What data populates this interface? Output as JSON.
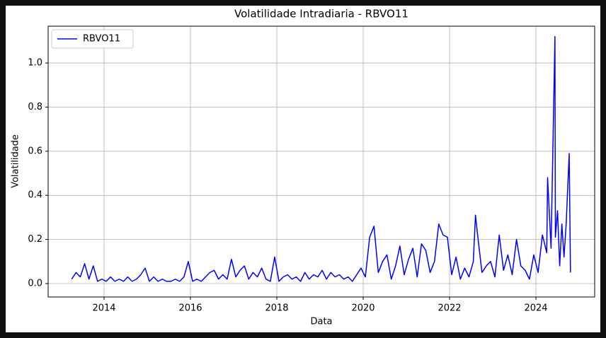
{
  "chart_data": {
    "type": "line",
    "title": "Volatilidade Intradiaria - RBVO11",
    "x_label": "Data",
    "y_label": "Volatilidade",
    "x": [
      2013.25,
      2013.35,
      2013.45,
      2013.55,
      2013.65,
      2013.75,
      2013.85,
      2013.95,
      2014.05,
      2014.15,
      2014.25,
      2014.35,
      2014.45,
      2014.55,
      2014.65,
      2014.75,
      2014.85,
      2014.95,
      2015.05,
      2015.15,
      2015.25,
      2015.35,
      2015.45,
      2015.55,
      2015.65,
      2015.75,
      2015.85,
      2015.95,
      2016.05,
      2016.15,
      2016.25,
      2016.35,
      2016.45,
      2016.55,
      2016.65,
      2016.75,
      2016.85,
      2016.95,
      2017.05,
      2017.15,
      2017.25,
      2017.35,
      2017.45,
      2017.55,
      2017.65,
      2017.75,
      2017.85,
      2017.95,
      2018.05,
      2018.15,
      2018.25,
      2018.35,
      2018.45,
      2018.55,
      2018.65,
      2018.75,
      2018.85,
      2018.95,
      2019.05,
      2019.15,
      2019.25,
      2019.35,
      2019.45,
      2019.55,
      2019.65,
      2019.75,
      2019.85,
      2019.95,
      2020.05,
      2020.15,
      2020.25,
      2020.35,
      2020.45,
      2020.55,
      2020.65,
      2020.75,
      2020.85,
      2020.95,
      2021.05,
      2021.15,
      2021.25,
      2021.35,
      2021.45,
      2021.55,
      2021.65,
      2021.75,
      2021.85,
      2021.95,
      2022.05,
      2022.15,
      2022.25,
      2022.35,
      2022.45,
      2022.55,
      2022.6,
      2022.65,
      2022.75,
      2022.85,
      2022.95,
      2023.05,
      2023.15,
      2023.25,
      2023.35,
      2023.45,
      2023.55,
      2023.65,
      2023.75,
      2023.85,
      2023.95,
      2024.05,
      2024.15,
      2024.25,
      2024.27,
      2024.35,
      2024.44,
      2024.45,
      2024.5,
      2024.55,
      2024.6,
      2024.65,
      2024.7,
      2024.77,
      2024.8
    ],
    "series": [
      {
        "name": "RBVO11",
        "color": "#0000ff",
        "values": [
          0.02,
          0.05,
          0.03,
          0.09,
          0.02,
          0.08,
          0.01,
          0.02,
          0.01,
          0.03,
          0.01,
          0.02,
          0.01,
          0.03,
          0.01,
          0.02,
          0.04,
          0.07,
          0.01,
          0.03,
          0.01,
          0.02,
          0.01,
          0.01,
          0.02,
          0.01,
          0.03,
          0.1,
          0.01,
          0.02,
          0.01,
          0.03,
          0.05,
          0.06,
          0.02,
          0.04,
          0.02,
          0.11,
          0.03,
          0.06,
          0.08,
          0.02,
          0.05,
          0.03,
          0.07,
          0.02,
          0.01,
          0.12,
          0.01,
          0.03,
          0.04,
          0.02,
          0.03,
          0.01,
          0.05,
          0.02,
          0.04,
          0.03,
          0.06,
          0.02,
          0.05,
          0.03,
          0.04,
          0.02,
          0.03,
          0.01,
          0.04,
          0.07,
          0.03,
          0.21,
          0.26,
          0.05,
          0.1,
          0.13,
          0.02,
          0.08,
          0.17,
          0.04,
          0.11,
          0.16,
          0.03,
          0.18,
          0.15,
          0.05,
          0.1,
          0.27,
          0.22,
          0.21,
          0.04,
          0.12,
          0.02,
          0.07,
          0.03,
          0.1,
          0.31,
          0.22,
          0.05,
          0.08,
          0.1,
          0.03,
          0.22,
          0.06,
          0.13,
          0.04,
          0.2,
          0.08,
          0.06,
          0.02,
          0.13,
          0.05,
          0.22,
          0.14,
          0.48,
          0.16,
          1.12,
          0.21,
          0.33,
          0.08,
          0.27,
          0.12,
          0.27,
          0.59,
          0.05
        ]
      }
    ],
    "xlim": [
      2012.705,
      2025.36
    ],
    "xticks": [
      2014,
      2016,
      2018,
      2020,
      2022,
      2024
    ],
    "ylim": [
      -0.061,
      1.167
    ],
    "yticks": [
      {
        "value": 0,
        "label": "0.0"
      },
      0.2,
      0.4,
      0.6,
      0.8,
      {
        "value": 1,
        "label": "1.0"
      }
    ],
    "grid": true,
    "legend": "upper left"
  }
}
